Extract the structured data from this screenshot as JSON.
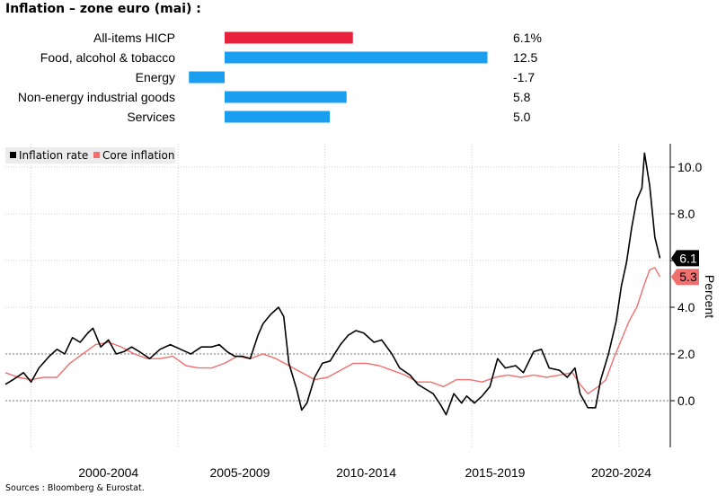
{
  "title": "Inflation – zone euro (mai) :",
  "source": "Sources : Bloomberg & Eurostat.",
  "chart_data": [
    {
      "type": "bar",
      "orientation": "horizontal",
      "categories": [
        "All-items HICP",
        "Food, alcohol & tobacco",
        "Energy",
        "Non-energy industrial goods",
        "Services"
      ],
      "values": [
        6.1,
        12.5,
        -1.7,
        5.8,
        5.0
      ],
      "value_labels": [
        "6.1%",
        "12.5",
        "-1.7",
        "5.8",
        "5.0"
      ],
      "colors": [
        "#e8213c",
        "#1a9ff0",
        "#1a9ff0",
        "#1a9ff0",
        "#1a9ff0"
      ]
    },
    {
      "type": "line",
      "ylabel": "Percent",
      "ylim": [
        -2,
        11
      ],
      "yticks": [
        "10.0",
        "8.0",
        "6.0",
        "4.0",
        "2.0",
        "0.0"
      ],
      "xlim": [
        1998,
        2023.8
      ],
      "xtick_labels": [
        "2000-2004",
        "2005-2009",
        "2010-2014",
        "2015-2019",
        "2020-2024"
      ],
      "grid": true,
      "legend_position": "top-left",
      "end_labels": [
        "6.1",
        "5.3"
      ],
      "series": [
        {
          "name": "Inflation rate",
          "color": "#000000",
          "x": [
            1998.0,
            1998.3,
            1998.7,
            1999.0,
            1999.3,
            1999.7,
            2000.0,
            2000.3,
            2000.6,
            2000.9,
            2001.2,
            2001.4,
            2001.7,
            2002.0,
            2002.3,
            2002.6,
            2002.9,
            2003.2,
            2003.6,
            2004.0,
            2004.4,
            2004.8,
            2005.2,
            2005.6,
            2006.0,
            2006.3,
            2006.6,
            2006.9,
            2007.2,
            2007.5,
            2007.8,
            2008.0,
            2008.3,
            2008.6,
            2008.8,
            2009.0,
            2009.3,
            2009.5,
            2009.7,
            2010.0,
            2010.3,
            2010.6,
            2011.0,
            2011.3,
            2011.6,
            2011.9,
            2012.3,
            2012.6,
            2013.0,
            2013.3,
            2013.7,
            2014.0,
            2014.3,
            2014.6,
            2014.9,
            2015.1,
            2015.4,
            2015.7,
            2015.9,
            2016.2,
            2016.5,
            2016.8,
            2017.1,
            2017.4,
            2017.8,
            2018.1,
            2018.5,
            2018.8,
            2019.1,
            2019.5,
            2019.8,
            2020.1,
            2020.3,
            2020.6,
            2020.9,
            2021.1,
            2021.4,
            2021.7,
            2021.9,
            2022.1,
            2022.3,
            2022.5,
            2022.7,
            2022.8,
            2023.0,
            2023.2,
            2023.4
          ],
          "values": [
            0.7,
            0.9,
            1.2,
            0.8,
            1.4,
            1.9,
            2.2,
            2.0,
            2.7,
            2.5,
            2.9,
            3.1,
            2.3,
            2.6,
            2.0,
            2.1,
            2.3,
            2.1,
            1.8,
            2.2,
            2.4,
            2.2,
            2.0,
            2.3,
            2.3,
            2.4,
            2.1,
            1.9,
            1.9,
            1.8,
            2.8,
            3.3,
            3.7,
            4.0,
            3.6,
            1.6,
            0.5,
            -0.4,
            -0.1,
            1.0,
            1.6,
            1.7,
            2.4,
            2.8,
            3.0,
            2.9,
            2.5,
            2.6,
            2.0,
            1.4,
            1.1,
            0.7,
            0.5,
            0.3,
            -0.2,
            -0.6,
            0.3,
            -0.1,
            0.2,
            -0.1,
            0.2,
            0.6,
            1.8,
            1.4,
            1.5,
            1.2,
            2.1,
            2.2,
            1.4,
            1.3,
            1.0,
            1.4,
            0.3,
            -0.3,
            -0.3,
            0.9,
            2.0,
            3.4,
            4.9,
            5.9,
            7.4,
            8.6,
            9.1,
            10.6,
            9.2,
            7.0,
            6.1
          ]
        },
        {
          "name": "Core inflation",
          "color": "#f07070",
          "x": [
            1998.0,
            1998.5,
            1999.0,
            1999.5,
            2000.0,
            2000.5,
            2001.0,
            2001.5,
            2002.0,
            2002.5,
            2003.0,
            2003.5,
            2004.0,
            2004.5,
            2005.0,
            2005.5,
            2006.0,
            2006.5,
            2007.0,
            2007.5,
            2008.0,
            2008.5,
            2009.0,
            2009.5,
            2010.0,
            2010.5,
            2011.0,
            2011.5,
            2012.0,
            2012.5,
            2013.0,
            2013.5,
            2014.0,
            2014.5,
            2015.0,
            2015.5,
            2016.0,
            2016.5,
            2017.0,
            2017.5,
            2018.0,
            2018.5,
            2019.0,
            2019.5,
            2020.0,
            2020.3,
            2020.6,
            2021.0,
            2021.3,
            2021.6,
            2021.9,
            2022.2,
            2022.5,
            2022.8,
            2023.0,
            2023.2,
            2023.4
          ],
          "values": [
            1.2,
            1.0,
            0.9,
            1.0,
            1.0,
            1.6,
            2.0,
            2.4,
            2.5,
            2.3,
            2.0,
            1.8,
            1.8,
            1.9,
            1.5,
            1.4,
            1.4,
            1.6,
            1.9,
            1.8,
            2.0,
            1.8,
            1.5,
            1.2,
            0.9,
            1.0,
            1.3,
            1.6,
            1.6,
            1.5,
            1.3,
            1.1,
            0.8,
            0.8,
            0.6,
            0.9,
            0.9,
            0.8,
            1.0,
            1.1,
            1.0,
            1.1,
            1.0,
            1.1,
            1.2,
            0.7,
            0.3,
            0.6,
            0.9,
            1.8,
            2.6,
            3.4,
            4.0,
            5.0,
            5.6,
            5.7,
            5.3
          ]
        }
      ]
    }
  ]
}
